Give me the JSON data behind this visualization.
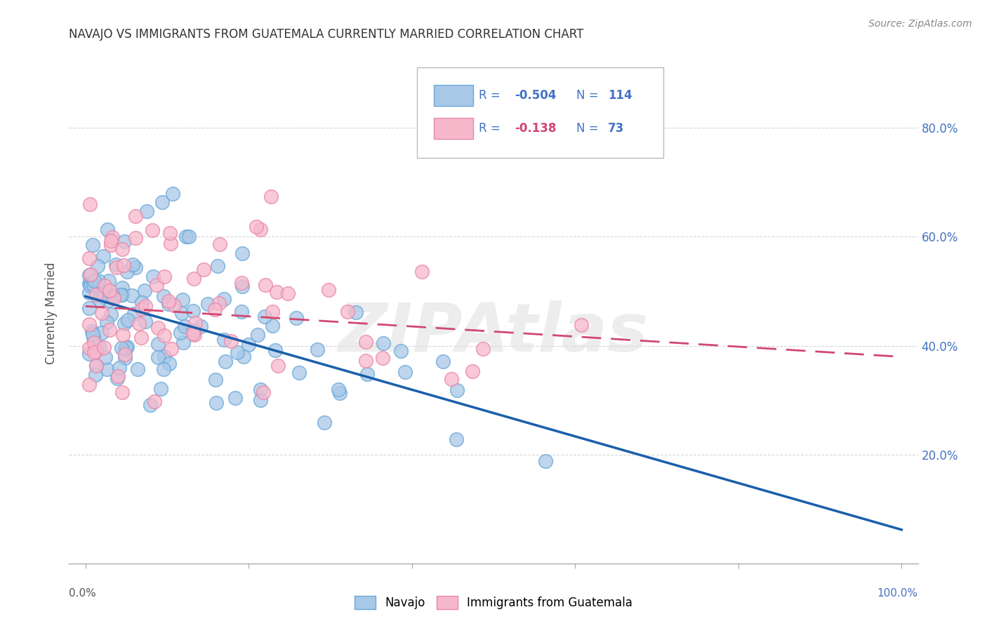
{
  "title": "NAVAJO VS IMMIGRANTS FROM GUATEMALA CURRENTLY MARRIED CORRELATION CHART",
  "source": "Source: ZipAtlas.com",
  "ylabel": "Currently Married",
  "ytick_labels": [
    "20.0%",
    "40.0%",
    "60.0%",
    "80.0%"
  ],
  "ytick_values": [
    0.2,
    0.4,
    0.6,
    0.8
  ],
  "xlim": [
    -0.02,
    1.02
  ],
  "ylim": [
    0.0,
    0.92
  ],
  "navajo_color": "#a8c8e8",
  "navajo_edge": "#6aa8d8",
  "navajo_line": "#1a5faa",
  "navajo_R": -0.504,
  "navajo_N": 114,
  "guatemala_color": "#f8b8cc",
  "guatemala_edge": "#e888a8",
  "guatemala_line": "#d04870",
  "guatemala_R": -0.138,
  "guatemala_N": 73,
  "watermark": "ZIPAtlas",
  "background_color": "#ffffff",
  "grid_color": "#cccccc",
  "navajo_seed": 42,
  "guatemala_seed": 99
}
